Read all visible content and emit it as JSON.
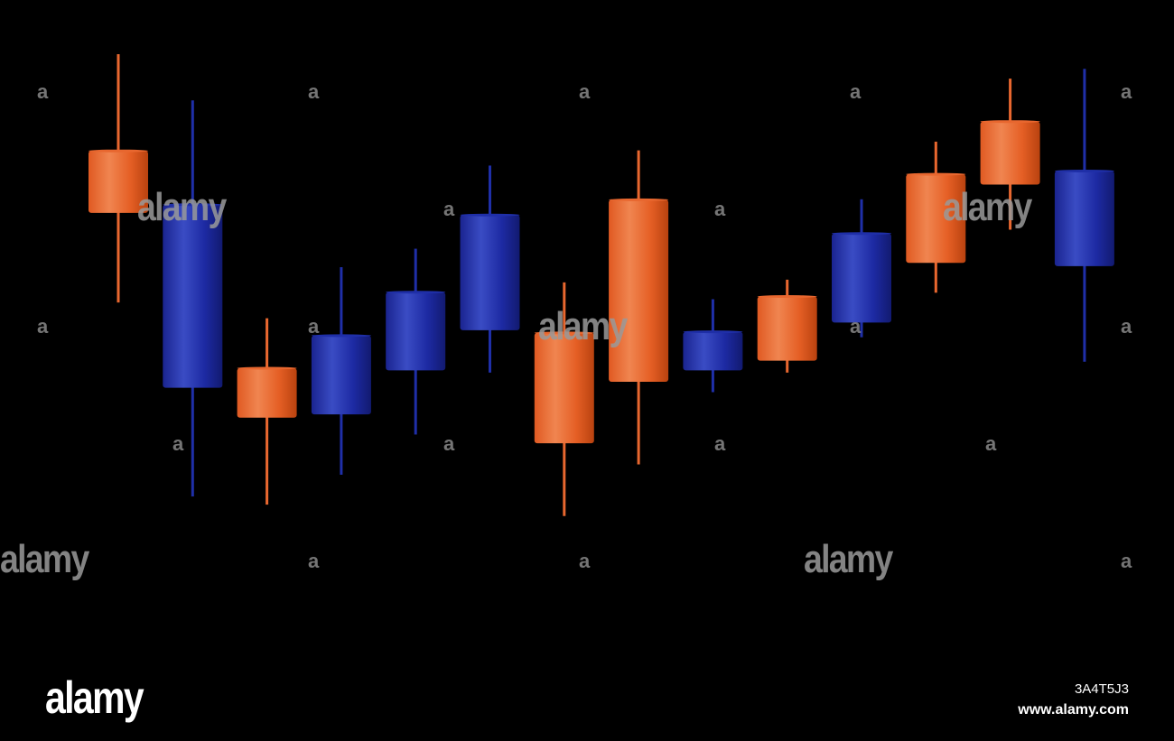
{
  "chart_data": {
    "type": "candlestick",
    "title": "",
    "xlabel": "",
    "ylabel": "",
    "grid": false,
    "ylim": [
      0,
      100
    ],
    "colors": {
      "up": "#e8672f",
      "down": "#1f2fa8",
      "background": "#000000"
    },
    "candles": [
      {
        "direction": "up",
        "open": 68.8,
        "close": 80.2,
        "high": 98.0,
        "low": 52.3
      },
      {
        "direction": "down",
        "open": 70.3,
        "close": 36.6,
        "high": 89.5,
        "low": 16.6
      },
      {
        "direction": "up",
        "open": 31.1,
        "close": 40.2,
        "high": 49.4,
        "low": 15.1
      },
      {
        "direction": "down",
        "open": 46.2,
        "close": 31.7,
        "high": 58.8,
        "low": 20.6
      },
      {
        "direction": "down",
        "open": 54.2,
        "close": 39.8,
        "high": 62.2,
        "low": 28.0
      },
      {
        "direction": "down",
        "open": 68.4,
        "close": 47.2,
        "high": 77.5,
        "low": 39.4
      },
      {
        "direction": "up",
        "open": 26.4,
        "close": 46.7,
        "high": 56.0,
        "low": 13.0
      },
      {
        "direction": "up",
        "open": 37.7,
        "close": 71.2,
        "high": 80.3,
        "low": 22.5
      },
      {
        "direction": "down",
        "open": 46.9,
        "close": 39.8,
        "high": 52.9,
        "low": 35.8
      },
      {
        "direction": "up",
        "open": 41.6,
        "close": 53.4,
        "high": 56.5,
        "low": 39.4
      },
      {
        "direction": "down",
        "open": 65.0,
        "close": 48.6,
        "high": 71.3,
        "low": 45.9
      },
      {
        "direction": "up",
        "open": 59.6,
        "close": 75.9,
        "high": 81.9,
        "low": 54.1
      },
      {
        "direction": "up",
        "open": 74.0,
        "close": 85.6,
        "high": 93.5,
        "low": 65.7
      },
      {
        "direction": "down",
        "open": 76.5,
        "close": 59.0,
        "high": 95.3,
        "low": 41.4
      }
    ]
  },
  "watermarks": {
    "brand_text": "alamy",
    "letter": "a"
  },
  "footer": {
    "logo_text": "alamy",
    "image_id": "3A4T5J3",
    "url": "www.alamy.com"
  }
}
